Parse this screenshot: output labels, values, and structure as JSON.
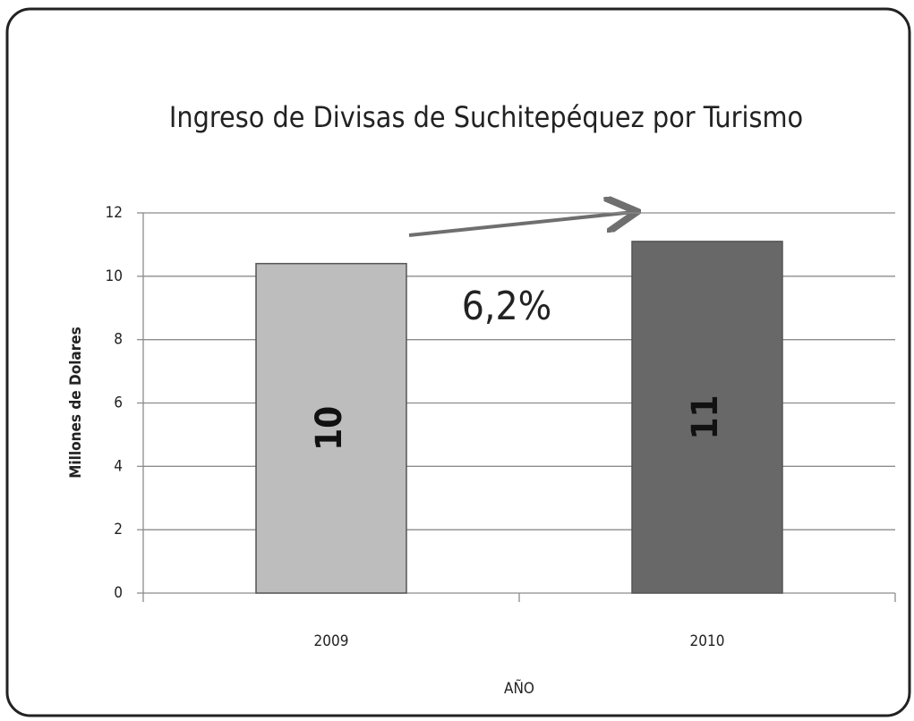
{
  "chart_data": {
    "type": "bar",
    "title": "Ingreso de Divisas de Suchitepéquez por Turismo",
    "categories": [
      "2009",
      "2010"
    ],
    "values": [
      10.4,
      11.1
    ],
    "value_labels": [
      "10",
      "11"
    ],
    "colors": [
      "#bdbdbd",
      "#686868"
    ],
    "ylabel": "Millones de Dolares",
    "xlabel": "AÑO",
    "annotation": "6,2%",
    "ylim": [
      0,
      12
    ],
    "yticks": [
      0,
      2,
      4,
      6,
      8,
      10,
      12
    ],
    "grid": true
  }
}
